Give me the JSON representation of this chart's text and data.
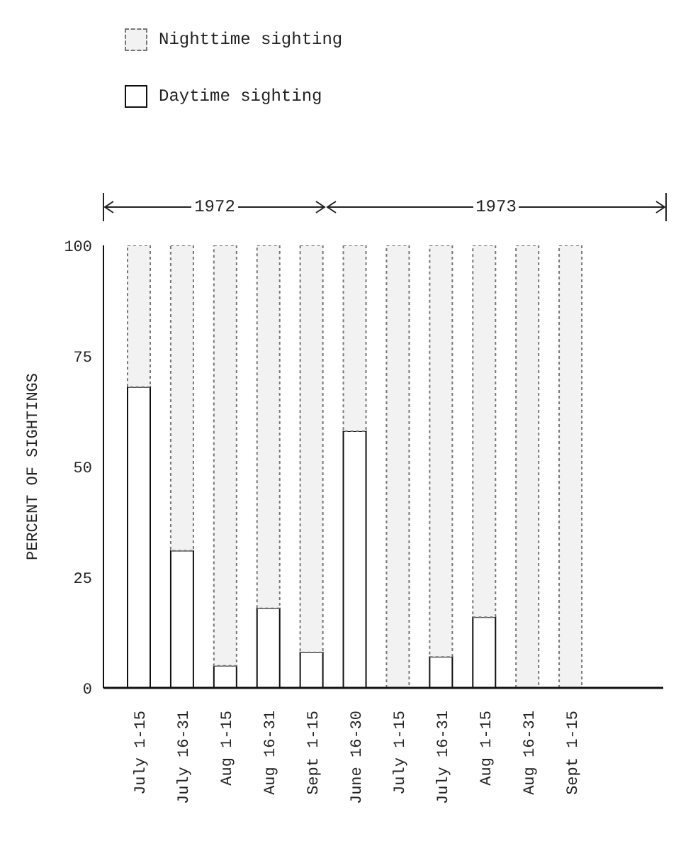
{
  "chart_data": {
    "type": "bar",
    "stacked": true,
    "ylabel": "PERCENT OF SIGHTINGS",
    "categories": [
      "July 1-15",
      "July 16-31",
      "Aug 1-15",
      "Aug 16-31",
      "Sept 1-15",
      "June 16-30",
      "July 1-15",
      "July 16-31",
      "Aug 1-15",
      "Aug 16-31",
      "Sept 1-15"
    ],
    "series": [
      {
        "name": "Daytime sighting",
        "color": "#ffffff",
        "values": [
          68,
          31,
          5,
          18,
          8,
          58,
          0,
          7,
          16,
          0,
          0
        ]
      },
      {
        "name": "Nighttime sighting",
        "color": "#f2f2f2",
        "values": [
          32,
          69,
          95,
          82,
          92,
          42,
          100,
          93,
          84,
          100,
          100
        ]
      }
    ],
    "ylim": [
      0,
      100
    ],
    "yticks": [
      0,
      25,
      50,
      75,
      100
    ],
    "grid": false,
    "legend": "top left",
    "annotations": [
      "1972",
      "1973"
    ]
  }
}
